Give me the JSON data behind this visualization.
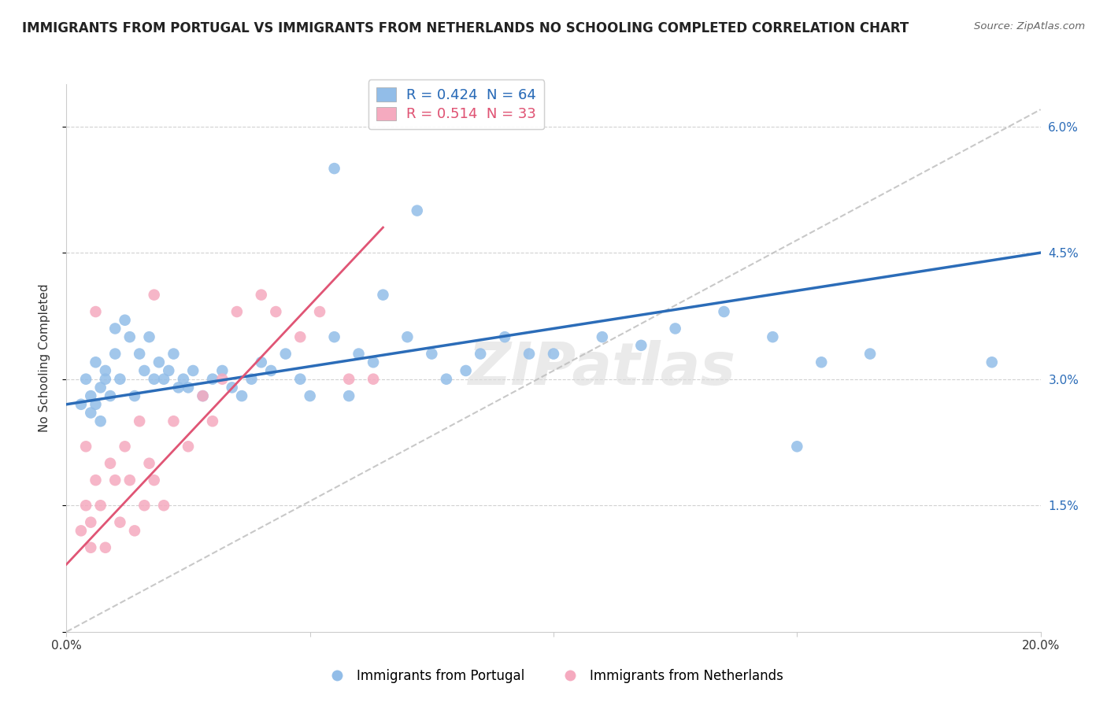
{
  "title": "IMMIGRANTS FROM PORTUGAL VS IMMIGRANTS FROM NETHERLANDS NO SCHOOLING COMPLETED CORRELATION CHART",
  "source": "Source: ZipAtlas.com",
  "ylabel": "No Schooling Completed",
  "xlim": [
    0.0,
    0.2
  ],
  "ylim": [
    0.0,
    0.065
  ],
  "xtick_positions": [
    0.0,
    0.05,
    0.1,
    0.15,
    0.2
  ],
  "xticklabels": [
    "0.0%",
    "",
    "",
    "",
    "20.0%"
  ],
  "ytick_positions": [
    0.0,
    0.015,
    0.03,
    0.045,
    0.06
  ],
  "ytick_labels": [
    "",
    "1.5%",
    "3.0%",
    "4.5%",
    "6.0%"
  ],
  "blue_color": "#92BDE8",
  "pink_color": "#F5AABF",
  "blue_line_color": "#2B6CB8",
  "pink_line_color": "#E05575",
  "R_blue": 0.424,
  "N_blue": 64,
  "R_pink": 0.514,
  "N_pink": 33,
  "watermark": "ZIPatlas",
  "blue_line_start_y": 0.027,
  "blue_line_end_y": 0.045,
  "pink_line_start_y": 0.008,
  "pink_line_end_y": 0.048,
  "blue_scatter_x": [
    0.003,
    0.004,
    0.005,
    0.005,
    0.006,
    0.006,
    0.007,
    0.007,
    0.008,
    0.008,
    0.009,
    0.01,
    0.01,
    0.011,
    0.012,
    0.013,
    0.014,
    0.015,
    0.016,
    0.017,
    0.018,
    0.019,
    0.02,
    0.021,
    0.022,
    0.023,
    0.024,
    0.025,
    0.026,
    0.028,
    0.03,
    0.032,
    0.034,
    0.036,
    0.038,
    0.04,
    0.042,
    0.045,
    0.048,
    0.05,
    0.055,
    0.058,
    0.06,
    0.063,
    0.065,
    0.07,
    0.075,
    0.078,
    0.082,
    0.085,
    0.09,
    0.095,
    0.1,
    0.11,
    0.118,
    0.125,
    0.135,
    0.145,
    0.155,
    0.165,
    0.055,
    0.19,
    0.15,
    0.072
  ],
  "blue_scatter_y": [
    0.027,
    0.03,
    0.026,
    0.028,
    0.027,
    0.032,
    0.025,
    0.029,
    0.03,
    0.031,
    0.028,
    0.033,
    0.036,
    0.03,
    0.037,
    0.035,
    0.028,
    0.033,
    0.031,
    0.035,
    0.03,
    0.032,
    0.03,
    0.031,
    0.033,
    0.029,
    0.03,
    0.029,
    0.031,
    0.028,
    0.03,
    0.031,
    0.029,
    0.028,
    0.03,
    0.032,
    0.031,
    0.033,
    0.03,
    0.028,
    0.035,
    0.028,
    0.033,
    0.032,
    0.04,
    0.035,
    0.033,
    0.03,
    0.031,
    0.033,
    0.035,
    0.033,
    0.033,
    0.035,
    0.034,
    0.036,
    0.038,
    0.035,
    0.032,
    0.033,
    0.055,
    0.032,
    0.022,
    0.05
  ],
  "pink_scatter_x": [
    0.003,
    0.004,
    0.005,
    0.005,
    0.006,
    0.007,
    0.008,
    0.009,
    0.01,
    0.011,
    0.012,
    0.013,
    0.014,
    0.015,
    0.016,
    0.017,
    0.018,
    0.02,
    0.022,
    0.025,
    0.028,
    0.03,
    0.032,
    0.035,
    0.04,
    0.043,
    0.048,
    0.052,
    0.058,
    0.063,
    0.004,
    0.006,
    0.018
  ],
  "pink_scatter_y": [
    0.012,
    0.015,
    0.013,
    0.01,
    0.018,
    0.015,
    0.01,
    0.02,
    0.018,
    0.013,
    0.022,
    0.018,
    0.012,
    0.025,
    0.015,
    0.02,
    0.018,
    0.015,
    0.025,
    0.022,
    0.028,
    0.025,
    0.03,
    0.038,
    0.04,
    0.038,
    0.035,
    0.038,
    0.03,
    0.03,
    0.022,
    0.038,
    0.04
  ],
  "grid_color": "#CCCCCC",
  "bg_color": "#FFFFFF"
}
